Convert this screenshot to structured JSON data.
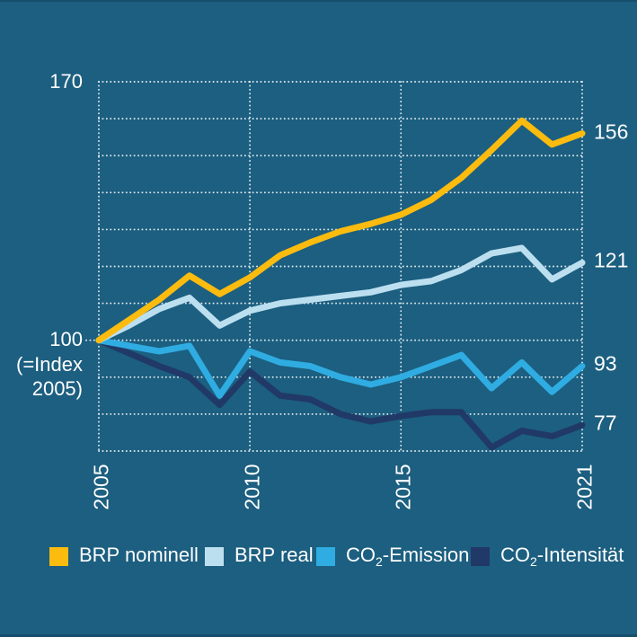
{
  "colors": {
    "background": "#1C5F80",
    "edge_strip": "#174E6B",
    "grid_dots": "#FFFFFF",
    "text": "#FFFFFF"
  },
  "chart_data": {
    "type": "line",
    "title": "",
    "xlabel": "",
    "ylabel": "",
    "x": [
      2005,
      2006,
      2007,
      2008,
      2009,
      2010,
      2011,
      2012,
      2013,
      2014,
      2015,
      2016,
      2017,
      2018,
      2019,
      2020,
      2021
    ],
    "ylim": [
      70,
      170
    ],
    "y_gridlines": [
      70,
      80,
      90,
      100,
      110,
      120,
      130,
      140,
      150,
      160,
      170
    ],
    "x_gridline_years": [
      2005,
      2010,
      2015,
      2021
    ],
    "x_tick_labels": [
      "2005",
      "2010",
      "2015",
      "2021"
    ],
    "y_top_tick_label": "170",
    "baseline_label_lines": [
      "100",
      "(=Index",
      "2005)"
    ],
    "grid": "dotted white, horizontal every 10 units, vertical at labeled years",
    "legend_position": "bottom",
    "series": [
      {
        "name": "BRP nominell",
        "legend": {
          "pre": "BRP nominell",
          "sub": "",
          "post": ""
        },
        "color": "#FBBB0F",
        "end_label": "156",
        "values": [
          100,
          105.5,
          111,
          117.5,
          112.5,
          117,
          123,
          126.5,
          129.5,
          131.5,
          134,
          138,
          144,
          151.5,
          159.5,
          153,
          156
        ]
      },
      {
        "name": "BRP real",
        "legend": {
          "pre": "BRP real",
          "sub": "",
          "post": ""
        },
        "color": "#BCDFF0",
        "end_label": "121",
        "values": [
          100,
          104,
          108.5,
          111.5,
          104,
          108,
          110,
          111,
          112,
          113,
          115,
          116,
          119,
          123.5,
          125,
          116.5,
          121
        ]
      },
      {
        "name": "CO2-Emission",
        "legend": {
          "pre": "CO",
          "sub": "2",
          "post": "-Emission"
        },
        "color": "#2FACE1",
        "end_label": "93",
        "values": [
          100,
          98.5,
          97,
          98.5,
          85,
          97,
          94,
          93,
          90,
          88,
          90,
          93,
          96,
          87,
          94,
          86,
          93
        ]
      },
      {
        "name": "CO2-Intensität",
        "legend": {
          "pre": "CO",
          "sub": "2",
          "post": "-Intensität"
        },
        "color": "#213966",
        "end_label": "77",
        "values": [
          100,
          96.5,
          93,
          90,
          82.5,
          91.5,
          85,
          84,
          80,
          78,
          79.5,
          80.5,
          80.5,
          71,
          75.5,
          74,
          77
        ]
      }
    ]
  }
}
